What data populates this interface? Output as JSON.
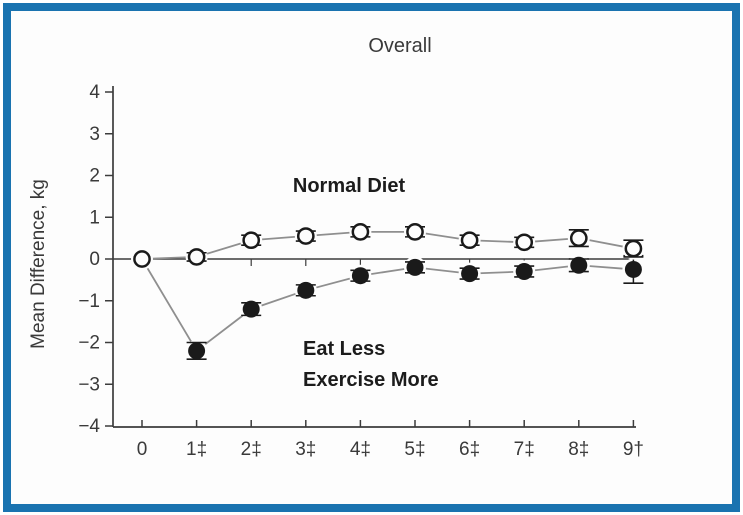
{
  "figure": {
    "border_color": "#1a73b0",
    "background_color": "#fdfdfd"
  },
  "chart_data": {
    "type": "line",
    "title": "Overall",
    "xlabel": "",
    "ylabel": "Mean Difference, kg",
    "ylim": [
      -4,
      4
    ],
    "yticks": [
      4,
      3,
      2,
      1,
      0,
      -1,
      -2,
      -3,
      -4
    ],
    "ytick_labels": [
      "4",
      "3",
      "2",
      "1",
      "0",
      "−1",
      "−2",
      "−3",
      "−4"
    ],
    "x": [
      0,
      1,
      2,
      3,
      4,
      5,
      6,
      7,
      8,
      9
    ],
    "xtick_labels": [
      "0",
      "1‡",
      "2‡",
      "3‡",
      "4‡",
      "5‡",
      "6‡",
      "7‡",
      "8‡",
      "9†"
    ],
    "grid": false,
    "zero_line": true,
    "legend_position": "inline-annotations",
    "series": [
      {
        "name": "Normal Diet",
        "marker": "open-circle",
        "values": [
          0,
          0.05,
          0.45,
          0.55,
          0.65,
          0.65,
          0.45,
          0.4,
          0.5,
          0.25
        ],
        "errors": [
          0,
          0.1,
          0.12,
          0.12,
          0.12,
          0.12,
          0.12,
          0.12,
          0.2,
          0.2
        ],
        "skip_marker_indices": []
      },
      {
        "name": "Eat Less Exercise More",
        "marker": "filled-circle",
        "values": [
          0,
          -2.2,
          -1.2,
          -0.75,
          -0.4,
          -0.2,
          -0.35,
          -0.3,
          -0.15,
          -0.25
        ],
        "errors": [
          0,
          0.2,
          0.15,
          0.13,
          0.13,
          0.13,
          0.13,
          0.13,
          0.15,
          0.33
        ],
        "skip_marker_indices": [
          0
        ]
      }
    ],
    "annotations": [
      {
        "text": "Normal Diet",
        "x": 3.8,
        "y": 1.75
      },
      {
        "text": "Eat Less",
        "x": 3.0,
        "y": -2.1
      },
      {
        "text": "Exercise More",
        "x": 3.0,
        "y": -2.85
      }
    ],
    "colors": {
      "connector_line": "#8f8f8f",
      "marker_and_error": "#1a1a1a",
      "axis": "#3c3c3c",
      "text": "#3a3a3a"
    }
  }
}
